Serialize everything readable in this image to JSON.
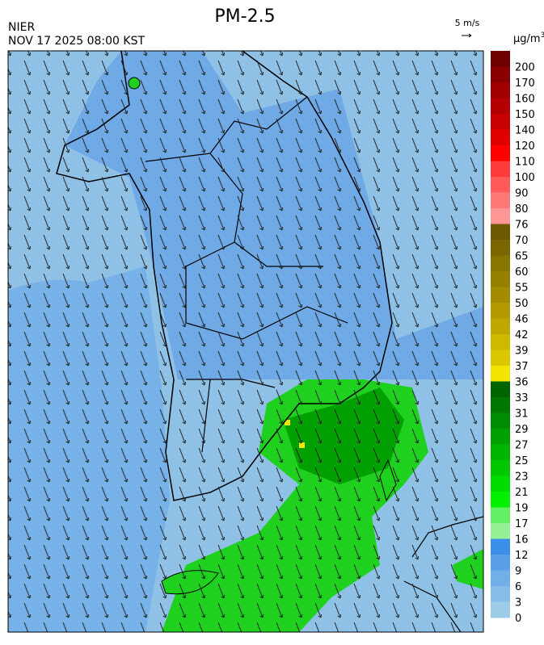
{
  "header": {
    "title": "PM-2.5",
    "agency": "NIER",
    "datetime": "NOV 17 2025 08:00 KST",
    "wind_scale": "5 m/s"
  },
  "colorbar": {
    "unit": {
      "base": "μg/m",
      "sup": "3"
    },
    "labels": [
      "200",
      "170",
      "160",
      "150",
      "140",
      "120",
      "110",
      "100",
      "90",
      "80",
      "76",
      "70",
      "65",
      "60",
      "55",
      "50",
      "46",
      "42",
      "39",
      "37",
      "36",
      "33",
      "31",
      "29",
      "27",
      "25",
      "23",
      "21",
      "19",
      "17",
      "16",
      "12",
      "9",
      "6",
      "3",
      "0"
    ],
    "colors": [
      "#6e0000",
      "#8a0000",
      "#a00000",
      "#b40000",
      "#c80000",
      "#e00000",
      "#ff0000",
      "#ff3a3a",
      "#ff5a5a",
      "#ff7878",
      "#ff9696",
      "#6b5a00",
      "#7a6600",
      "#887400",
      "#968000",
      "#a48c00",
      "#b29a00",
      "#c0a800",
      "#ceb800",
      "#dcc800",
      "#f2e600",
      "#006400",
      "#007800",
      "#008c00",
      "#00a000",
      "#00b400",
      "#00c800",
      "#00dc00",
      "#00f000",
      "#64f064",
      "#96f096",
      "#3a8ee8",
      "#5aa0e8",
      "#72aee8",
      "#86bce8",
      "#9ccce8"
    ]
  }
}
